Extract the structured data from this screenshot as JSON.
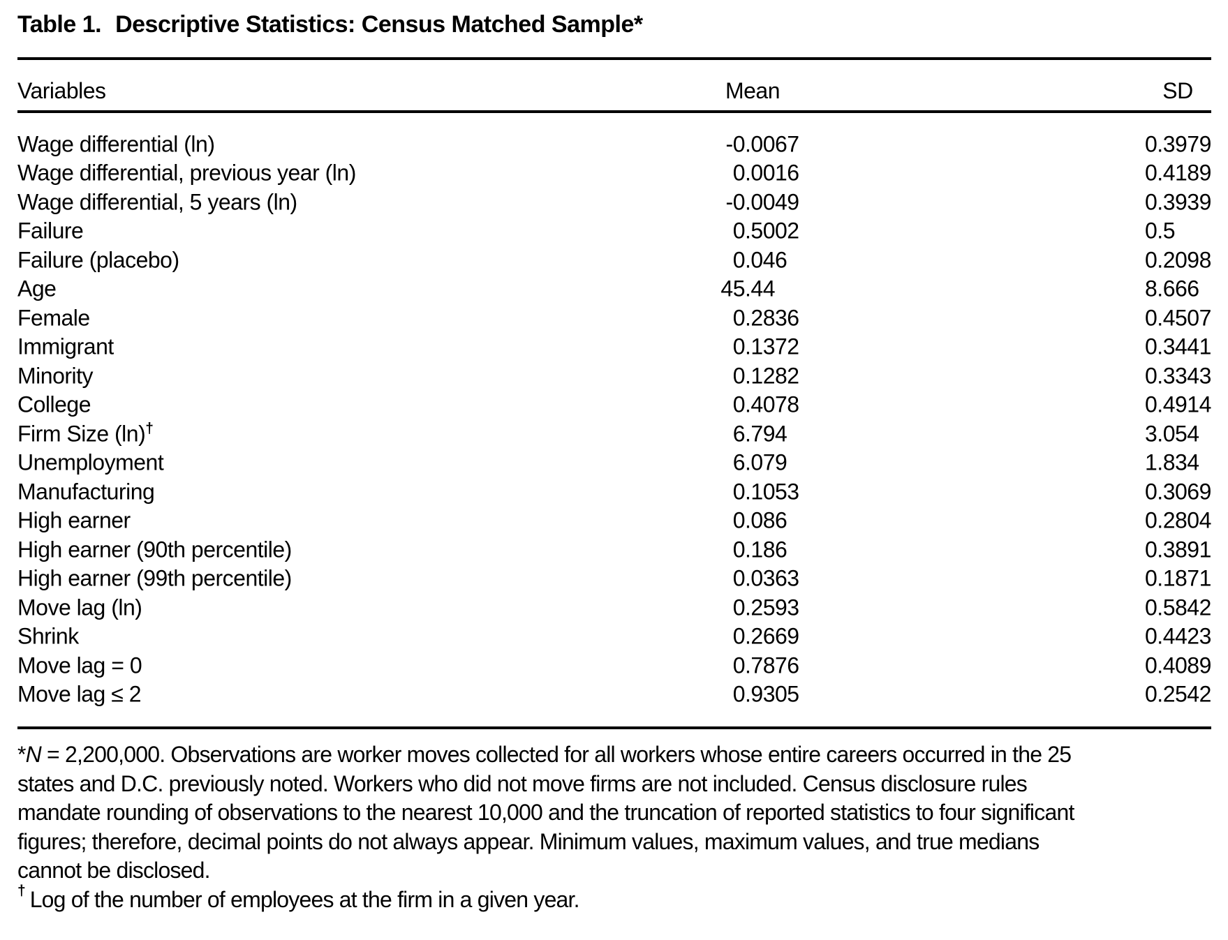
{
  "title": {
    "label": "Table 1.",
    "text": "Descriptive Statistics: Census Matched Sample",
    "marker": "*"
  },
  "table": {
    "columns": {
      "variable": "Variables",
      "mean": "Mean",
      "sd": "SD"
    },
    "rows": [
      {
        "variable": "Wage differential (ln)",
        "mean": "-0.0067",
        "sd": "0.3979"
      },
      {
        "variable": "Wage differential, previous year (ln)",
        "mean": "0.0016",
        "sd": "0.4189"
      },
      {
        "variable": "Wage differential, 5 years (ln)",
        "mean": "-0.0049",
        "sd": "0.3939"
      },
      {
        "variable": "Failure",
        "mean": "0.5002",
        "sd": "0.5"
      },
      {
        "variable": "Failure (placebo)",
        "mean": "0.046",
        "sd": "0.2098"
      },
      {
        "variable": "Age",
        "mean": "45.44",
        "sd": "8.666"
      },
      {
        "variable": "Female",
        "mean": "0.2836",
        "sd": "0.4507"
      },
      {
        "variable": "Immigrant",
        "mean": "0.1372",
        "sd": "0.3441"
      },
      {
        "variable": "Minority",
        "mean": "0.1282",
        "sd": "0.3343"
      },
      {
        "variable": "College",
        "mean": "0.4078",
        "sd": "0.4914"
      },
      {
        "variable": "Firm Size (ln)",
        "sup": "†",
        "mean": "6.794",
        "sd": "3.054"
      },
      {
        "variable": "Unemployment",
        "mean": "6.079",
        "sd": "1.834"
      },
      {
        "variable": "Manufacturing",
        "mean": "0.1053",
        "sd": "0.3069"
      },
      {
        "variable": "High earner",
        "mean": "0.086",
        "sd": "0.2804"
      },
      {
        "variable": "High earner (90th percentile)",
        "mean": "0.186",
        "sd": "0.3891"
      },
      {
        "variable": "High earner (99th percentile)",
        "mean": "0.0363",
        "sd": "0.1871"
      },
      {
        "variable": "Move lag (ln)",
        "mean": "0.2593",
        "sd": "0.5842"
      },
      {
        "variable": "Shrink",
        "mean": "0.2669",
        "sd": "0.4423"
      },
      {
        "variable": "Move lag = 0",
        "mean": "0.7876",
        "sd": "0.4089"
      },
      {
        "variable": "Move lag ≤ 2",
        "mean": "0.9305",
        "sd": "0.2542"
      }
    ]
  },
  "footnotes": {
    "star": {
      "marker": "*",
      "italic": "N",
      "lines": [
        " = 2,200,000. Observations are worker moves collected for all workers whose entire careers occurred in the 25",
        "states and D.C. previously noted. Workers who did not move firms are not included. Census disclosure rules",
        "mandate rounding of observations to the nearest 10,000 and the truncation of reported statistics to four significant",
        "figures; therefore, decimal points do not always appear. Minimum values, maximum values, and true medians",
        "cannot be disclosed."
      ]
    },
    "dagger": {
      "marker": "†",
      "text": "Log of the number of employees at the firm in a given year."
    }
  },
  "colors": {
    "text": "#000000",
    "background": "#ffffff",
    "rule": "#000000"
  }
}
